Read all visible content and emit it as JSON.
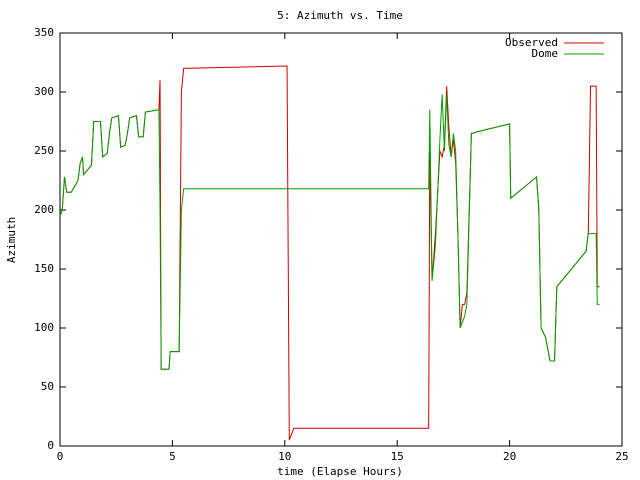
{
  "chart_data": {
    "type": "line",
    "title": "5: Azimuth vs. Time",
    "x_label": "time (Elapse Hours)",
    "y_label": "Azimuth",
    "xlim": [
      0,
      25
    ],
    "ylim": [
      0,
      350
    ],
    "xticks": [
      0,
      5,
      10,
      15,
      20,
      25
    ],
    "yticks": [
      0,
      50,
      100,
      150,
      200,
      250,
      300,
      350
    ],
    "legend": "top-right",
    "x": [
      0,
      0.1,
      0.2,
      0.3,
      0.5,
      0.8,
      0.9,
      1.0,
      1.05,
      1.4,
      1.5,
      1.8,
      1.9,
      2.1,
      2.2,
      2.3,
      2.6,
      2.7,
      2.9,
      3.0,
      3.1,
      3.4,
      3.5,
      3.7,
      3.8,
      4.4,
      4.45,
      4.5,
      4.85,
      4.9,
      5.3,
      5.4,
      5.5,
      10.1,
      10.2,
      10.4,
      16.4,
      16.45,
      16.55,
      16.7,
      16.9,
      17.0,
      17.1,
      17.2,
      17.3,
      17.4,
      17.5,
      17.6,
      17.7,
      17.8,
      17.9,
      18.0,
      18.1,
      18.3,
      18.4,
      18.5,
      20.0,
      20.05,
      21.2,
      21.3,
      21.4,
      21.6,
      21.8,
      22.0,
      22.1,
      23.4,
      23.5,
      23.6,
      23.85,
      23.9,
      24.0
    ],
    "series": [
      {
        "name": "Observed",
        "color": "#d00000",
        "values": [
          195,
          200,
          228,
          215,
          215,
          225,
          240,
          245,
          230,
          238,
          275,
          275,
          245,
          248,
          265,
          278,
          280,
          253,
          255,
          265,
          278,
          280,
          262,
          262,
          283,
          285,
          310,
          65,
          65,
          80,
          80,
          300,
          320,
          322,
          5,
          15,
          15,
          250,
          140,
          180,
          250,
          245,
          255,
          305,
          270,
          245,
          260,
          240,
          180,
          100,
          120,
          120,
          130,
          265,
          265,
          266,
          273,
          210,
          228,
          200,
          100,
          92,
          72,
          72,
          135,
          165,
          180,
          305,
          305,
          135,
          135
        ]
      },
      {
        "name": "Dome",
        "color": "#00a000",
        "values": [
          195,
          200,
          228,
          215,
          215,
          225,
          240,
          245,
          230,
          238,
          275,
          275,
          245,
          248,
          265,
          278,
          280,
          253,
          255,
          265,
          278,
          280,
          262,
          262,
          283,
          285,
          200,
          65,
          65,
          80,
          80,
          200,
          218,
          218,
          218,
          218,
          218,
          285,
          140,
          170,
          260,
          298,
          250,
          298,
          255,
          245,
          265,
          250,
          180,
          100,
          105,
          110,
          120,
          265,
          265,
          266,
          273,
          210,
          228,
          200,
          100,
          92,
          72,
          72,
          135,
          165,
          180,
          180,
          180,
          120,
          120
        ]
      }
    ]
  }
}
